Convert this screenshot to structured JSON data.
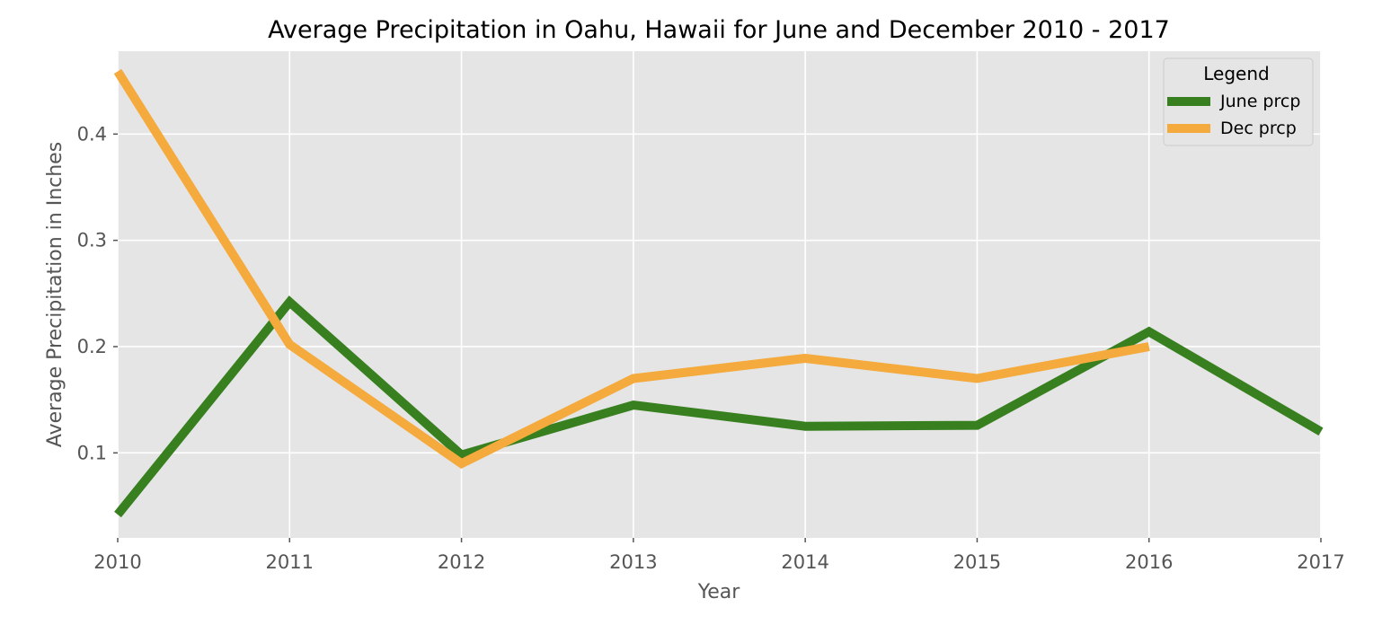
{
  "chart_data": {
    "type": "line",
    "title": "Average Precipitation in Oahu, Hawaii for June and December 2010 - 2017",
    "xlabel": "Year",
    "ylabel": "Average Precipitation in Inches",
    "x": [
      2010,
      2011,
      2012,
      2013,
      2014,
      2015,
      2016,
      2017
    ],
    "x_tick_labels": [
      "2010",
      "2011",
      "2012",
      "2013",
      "2014",
      "2015",
      "2016",
      "2017"
    ],
    "y_ticks": [
      0.1,
      0.2,
      0.3,
      0.4
    ],
    "y_tick_labels": [
      "0.1",
      "0.2",
      "0.3",
      "0.4"
    ],
    "xlim": [
      2010,
      2017
    ],
    "ylim": [
      0.02,
      0.478
    ],
    "grid": true,
    "legend": {
      "title": "Legend",
      "placement": "upper-right"
    },
    "series": [
      {
        "name": "June prcp",
        "color": "#38801f",
        "x": [
          2010,
          2011,
          2012,
          2013,
          2014,
          2015,
          2016,
          2017
        ],
        "values": [
          0.042,
          0.242,
          0.098,
          0.145,
          0.125,
          0.126,
          0.214,
          0.12
        ]
      },
      {
        "name": "Dec prcp",
        "color": "#f4aa3c",
        "x": [
          2010,
          2011,
          2012,
          2013,
          2014,
          2015,
          2016
        ],
        "values": [
          0.459,
          0.202,
          0.09,
          0.17,
          0.189,
          0.17,
          0.2
        ]
      }
    ],
    "plot_background": "#e5e5e5",
    "grid_color": "#ffffff"
  }
}
